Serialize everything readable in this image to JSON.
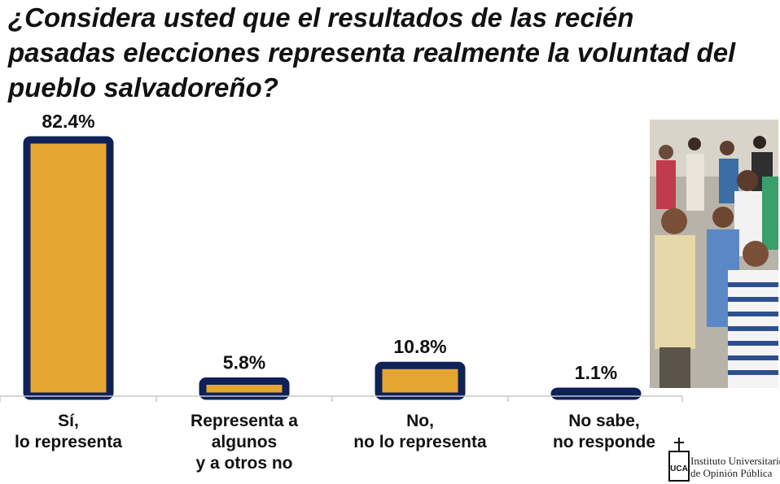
{
  "chart_data": {
    "type": "bar",
    "title": "¿Considera usted que el resultados de las recién pasadas elecciones representa realmente la voluntad del pueblo salvadoreño?",
    "categories": [
      [
        "Sí,",
        "lo representa"
      ],
      [
        "Representa a",
        "algunos",
        "y a otros no"
      ],
      [
        "No,",
        "no lo representa"
      ],
      [
        "No sabe,",
        "no responde"
      ]
    ],
    "values": [
      82.4,
      5.8,
      10.8,
      1.1
    ],
    "value_labels": [
      "82.4%",
      "5.8%",
      "10.8%",
      "1.1%"
    ],
    "ylim": [
      0,
      82.4
    ],
    "grid": false,
    "legend": "none",
    "colors": {
      "fill": "#E5A631",
      "border": "#0E2158",
      "axis": "#C8C8C8"
    }
  },
  "logo": {
    "line1": "Instituto Universitario",
    "line2": "de Opinión Pública",
    "mark": "UCA"
  }
}
